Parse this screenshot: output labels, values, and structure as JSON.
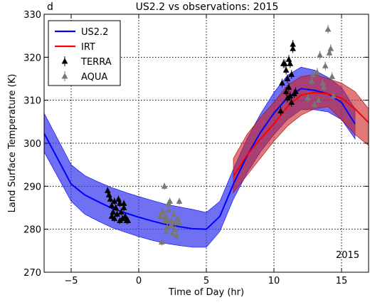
{
  "panel_letter": "d",
  "year_annotation": "2015",
  "colors": {
    "us22": "#0000ff",
    "us22_band": "#3333ee",
    "irt": "#ff0000",
    "irt_band": "#cc2222",
    "terra": "#000000",
    "aqua": "#777777"
  },
  "chart_data": {
    "type": "line",
    "title": "US2.2 vs observations: 2015",
    "xlabel": "Time of Day (hr)",
    "ylabel": "Land Surface Temperature (K)",
    "xlim": [
      -7,
      17
    ],
    "ylim": [
      270,
      330
    ],
    "xticks": [
      -5,
      0,
      5,
      10,
      15
    ],
    "yticks": [
      270,
      280,
      290,
      300,
      310,
      320,
      330
    ],
    "xtick_labels": [
      "−5",
      "0",
      "5",
      "10",
      "15"
    ],
    "ytick_labels": [
      "270",
      "280",
      "290",
      "300",
      "310",
      "320",
      "330"
    ],
    "grid": true,
    "legend_position": "top-left",
    "series": [
      {
        "name": "US2.2",
        "kind": "line_band",
        "x": [
          -7,
          -5,
          -4,
          -3,
          -2,
          -1,
          0,
          1,
          2,
          3,
          4,
          5,
          6,
          7,
          8,
          9,
          10,
          11,
          12,
          13,
          14,
          15,
          16
        ],
        "y": [
          302.3,
          290.5,
          288.0,
          286.4,
          284.9,
          283.8,
          282.8,
          281.9,
          281.1,
          280.6,
          280.1,
          280.0,
          283.0,
          290.5,
          297.0,
          302.5,
          307.0,
          310.6,
          312.7,
          312.3,
          311.5,
          309.5,
          304.5
        ],
        "lower": [
          298.0,
          286.5,
          283.5,
          281.9,
          280.4,
          279.3,
          278.3,
          277.4,
          276.7,
          276.2,
          275.8,
          275.8,
          279.5,
          287.0,
          293.0,
          298.0,
          302.0,
          305.5,
          307.8,
          307.8,
          307.3,
          305.5,
          301.0
        ],
        "upper": [
          307.0,
          295.0,
          292.5,
          291.0,
          289.7,
          288.6,
          287.6,
          286.7,
          285.8,
          285.2,
          284.6,
          283.9,
          286.5,
          294.0,
          301.0,
          306.8,
          311.8,
          315.8,
          317.7,
          317.0,
          315.3,
          313.0,
          308.0
        ]
      },
      {
        "name": "IRT",
        "kind": "line_band",
        "x": [
          7,
          8,
          9,
          10,
          11,
          12,
          13,
          14,
          15,
          16,
          17
        ],
        "y": [
          292.3,
          297.2,
          301.0,
          304.5,
          308.5,
          311.2,
          311.8,
          311.5,
          310.5,
          308.0,
          304.8
        ],
        "lower": [
          288.5,
          292.5,
          296.5,
          300.5,
          304.0,
          306.5,
          308.0,
          308.5,
          305.5,
          302.0,
          299.5
        ],
        "upper": [
          296.5,
          302.0,
          306.0,
          309.5,
          313.5,
          315.5,
          316.0,
          315.0,
          314.0,
          312.0,
          308.0
        ]
      },
      {
        "name": "TERRA",
        "kind": "scatter_err",
        "x": [
          -2.3,
          -2.2,
          -2.1,
          -2.0,
          -1.9,
          -1.8,
          -1.7,
          -1.6,
          -1.5,
          -1.4,
          -1.3,
          -1.2,
          -1.1,
          -1.0,
          -0.9,
          -2.0,
          -1.8,
          -1.4,
          -1.1,
          -0.8,
          10.5,
          10.7,
          10.8,
          10.9,
          11.0,
          11.1,
          11.2,
          11.3,
          11.4,
          11.5,
          11.6,
          10.6,
          10.9,
          11.2,
          11.0,
          11.3,
          11.4,
          11.1
        ],
        "y": [
          289.0,
          288.0,
          287.0,
          285.5,
          284.0,
          286.5,
          285.0,
          283.5,
          287.0,
          286.0,
          284.0,
          282.5,
          285.0,
          283.0,
          282.0,
          283.0,
          282.5,
          282.0,
          286.0,
          282.0,
          307.5,
          318.5,
          318.5,
          317.0,
          315.0,
          313.0,
          318.5,
          316.0,
          322.0,
          311.5,
          312.0,
          314.0,
          312.0,
          311.0,
          310.5,
          309.5,
          323.0,
          319.5
        ],
        "err": [
          0.8,
          0.8,
          0.8,
          0.8,
          0.8,
          0.8,
          0.8,
          0.8,
          0.8,
          0.8,
          0.8,
          0.8,
          0.8,
          0.8,
          0.8,
          0.8,
          0.8,
          0.8,
          0.8,
          0.8,
          1.0,
          1.0,
          1.0,
          1.0,
          1.0,
          1.0,
          1.0,
          1.0,
          1.0,
          1.0,
          1.0,
          1.0,
          1.0,
          1.0,
          1.0,
          1.0,
          1.0,
          1.0
        ]
      },
      {
        "name": "AQUA",
        "kind": "scatter_err",
        "x": [
          1.6,
          1.7,
          1.8,
          1.9,
          2.0,
          2.1,
          2.2,
          2.3,
          2.4,
          2.5,
          2.6,
          2.7,
          2.8,
          2.9,
          3.0,
          1.9,
          2.1,
          2.4,
          2.7,
          3.0,
          1.7,
          2.0,
          2.2,
          12.5,
          12.8,
          13.0,
          13.2,
          13.4,
          13.6,
          13.8,
          14.0,
          14.2,
          14.4,
          12.9,
          13.3,
          13.7,
          14.1,
          14.3
        ],
        "y": [
          283.0,
          277.0,
          284.0,
          282.0,
          283.0,
          280.5,
          284.5,
          286.5,
          282.0,
          279.0,
          283.5,
          281.5,
          278.5,
          282.5,
          286.5,
          290.0,
          282.0,
          281.0,
          280.0,
          281.5,
          284.0,
          279.5,
          286.0,
          310.5,
          314.5,
          309.0,
          316.5,
          320.5,
          314.0,
          318.0,
          326.5,
          322.0,
          311.0,
          316.0,
          310.0,
          313.0,
          321.0,
          315.5
        ],
        "err": [
          0.8,
          0.8,
          0.8,
          0.8,
          0.8,
          0.8,
          0.8,
          0.8,
          0.8,
          0.8,
          0.8,
          0.8,
          0.8,
          0.8,
          0.8,
          0.8,
          0.8,
          0.8,
          0.8,
          0.8,
          0.8,
          0.8,
          0.8,
          1.0,
          1.0,
          1.0,
          1.0,
          1.0,
          1.0,
          1.0,
          1.0,
          1.0,
          1.0,
          1.0,
          1.0,
          1.0,
          1.0,
          1.0
        ]
      }
    ]
  }
}
